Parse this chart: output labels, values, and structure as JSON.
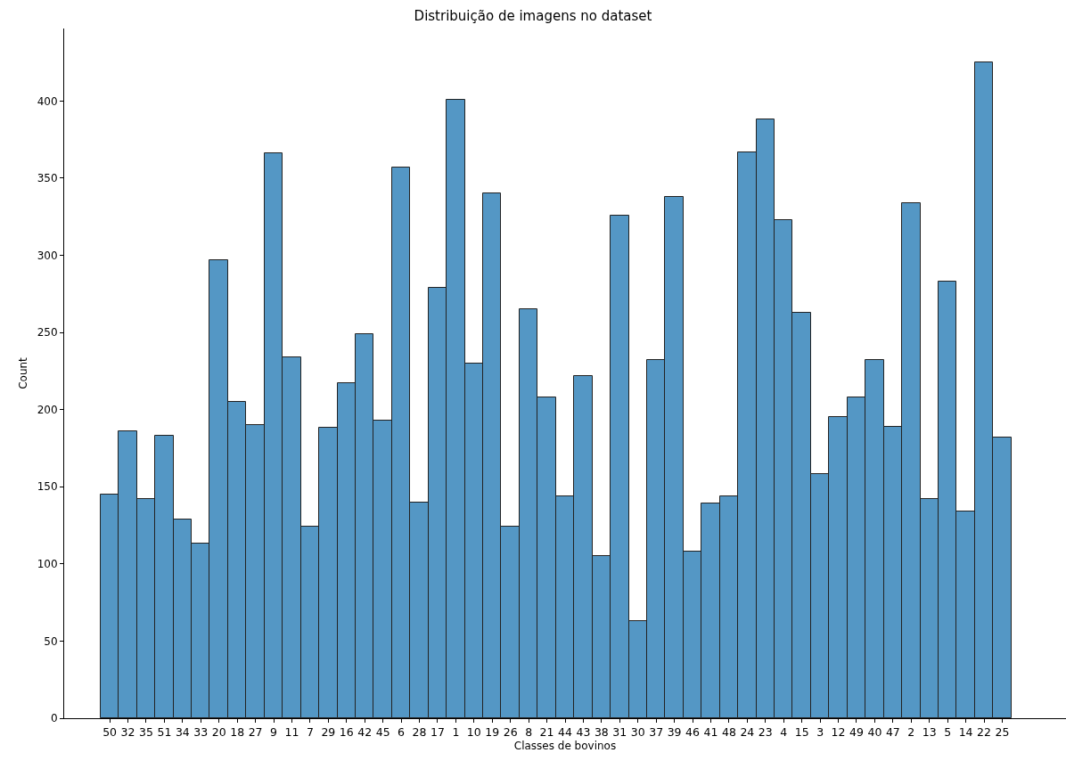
{
  "chart_data": {
    "type": "bar",
    "title": "Distribuição de imagens no dataset",
    "xlabel": "Classes de bovinos",
    "ylabel": "Count",
    "categories": [
      "50",
      "32",
      "35",
      "51",
      "34",
      "33",
      "20",
      "18",
      "27",
      "9",
      "11",
      "7",
      "29",
      "16",
      "42",
      "45",
      "6",
      "28",
      "17",
      "1",
      "10",
      "19",
      "26",
      "8",
      "21",
      "44",
      "43",
      "38",
      "31",
      "30",
      "37",
      "39",
      "46",
      "41",
      "48",
      "24",
      "23",
      "4",
      "15",
      "3",
      "12",
      "49",
      "40",
      "47",
      "2",
      "13",
      "5",
      "14",
      "22",
      "25"
    ],
    "values": [
      145,
      186,
      142,
      183,
      129,
      113,
      297,
      205,
      190,
      366,
      234,
      124,
      188,
      217,
      249,
      193,
      357,
      140,
      279,
      401,
      230,
      340,
      124,
      265,
      208,
      144,
      222,
      105,
      326,
      63,
      232,
      338,
      108,
      139,
      144,
      367,
      388,
      323,
      263,
      158,
      195,
      208,
      232,
      189,
      334,
      142,
      283,
      134,
      425,
      182
    ],
    "color": "#5497c5",
    "ylim": [
      0,
      447
    ],
    "yticks": [
      0,
      50,
      100,
      150,
      200,
      250,
      300,
      350,
      400
    ],
    "grid": false
  }
}
